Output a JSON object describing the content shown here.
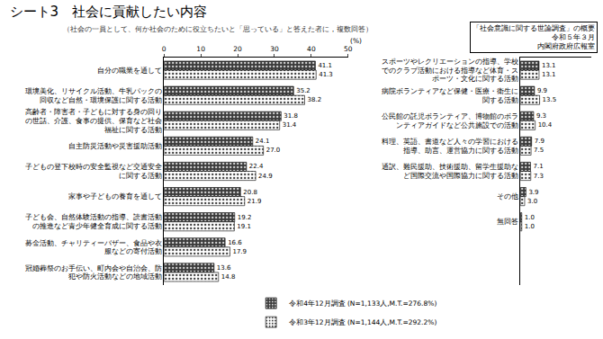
{
  "chart_data": {
    "type": "bar",
    "orientation": "horizontal",
    "title": "シート3　社会に貢献したい内容",
    "subtitle": "（社会の一員として、何か社会のために役立ちたいと「思っている」と答えた者に，複数回答）",
    "annotations": [
      "「社会意識に関する世論調査」の概要",
      "令和５年３月",
      "内閣府政府広報室"
    ],
    "x_label": "(%)",
    "categories": [
      "自分の職業を通して",
      "環境美化、リサイクル活動、牛乳パックの回収など自然・環境保護に関する活動",
      "高齢者・障害者・子どもに対する身の回りの世話、介護、食事の提供、保育など社会福祉に関する活動",
      "自主防災活動や災害援助活動",
      "子どもの登下校時の安全監視など交通安全に関する活動",
      "家事や子どもの養育を通して",
      "子ども会、自然体験活動の指導、読書活動の推進など青少年健全育成に関する活動",
      "募金活動、チャリティーバザー、食品や衣服などの寄付活動",
      "冠婚葬祭のお手伝い、町内会や自治会、防犯や防火活動などの地域活動",
      "スポーツやレクリエーションの指導、学校でのクラブ活動における指導など体育・スポーツ・文化に関する活動",
      "病院ボランティアなど保健・医療・衛生に関する活動",
      "公民館の託児ボランティア、博物館のボランティアガイドなど公共施設での活動",
      "料理、英語、書道など人々の学習における指導、助言、運営協力に関する活動",
      "通訳、難民援助、技術援助、留学生援助など国際交流や国際協力に関する活動",
      "その他",
      "無回答"
    ],
    "series": [
      {
        "name": "令和4年12月調査 (N=1,133人,M.T.=276.8%)",
        "color": "#3a3a3a",
        "values": [
          41.1,
          35.2,
          31.8,
          24.1,
          22.4,
          20.8,
          19.2,
          16.6,
          13.6,
          13.1,
          9.9,
          9.3,
          7.9,
          7.1,
          3.9,
          1.0
        ],
        "value_labels": [
          "41.1",
          "35.2",
          "31.8",
          "24.1",
          "22.4",
          "20.8",
          "19.2",
          "16.6",
          "13.6",
          "13.1",
          "9.9",
          "9.3",
          "7.9",
          "7.1",
          "3.9",
          "1.0"
        ]
      },
      {
        "name": "令和3年12月調査 (N=1,144人,M.T.=292.2%)",
        "color": "#ffffff",
        "values": [
          41.3,
          38.2,
          31.4,
          27.0,
          24.9,
          21.9,
          19.1,
          17.9,
          14.8,
          13.1,
          13.5,
          10.4,
          7.5,
          7.3,
          3.0,
          1.0
        ],
        "value_labels": [
          "41.3",
          "38.2",
          "31.4",
          "27.0",
          "24.9",
          "21.9",
          "19.1",
          "17.9",
          "14.8",
          "13.1",
          "13.5",
          "10.4",
          "7.5",
          "7.3",
          "3.0",
          "1.0"
        ]
      }
    ],
    "xlim": [
      0,
      50
    ],
    "xticks": [
      0,
      10,
      20,
      30,
      40,
      50
    ],
    "grid": false,
    "data_labels": true,
    "legend": "bottom"
  }
}
